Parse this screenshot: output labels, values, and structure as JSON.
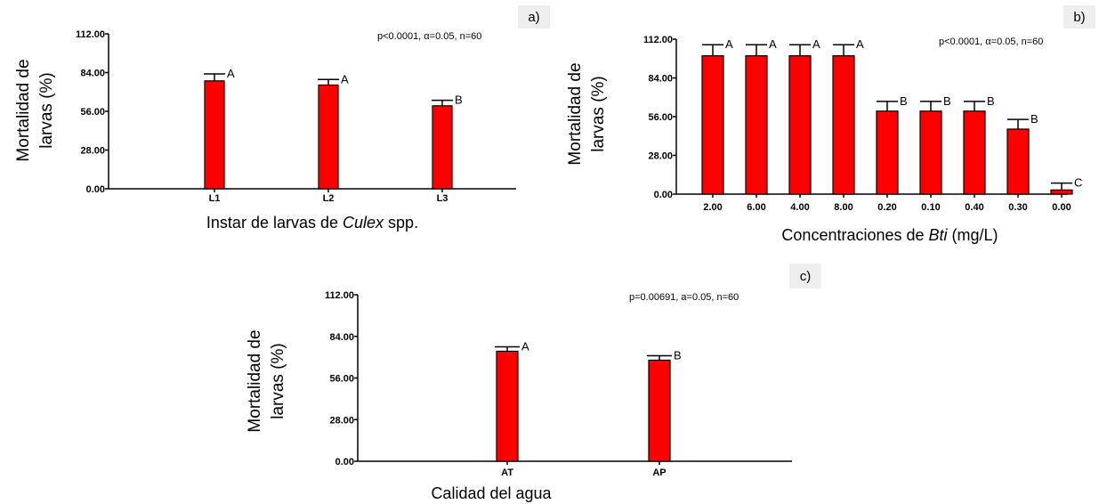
{
  "colors": {
    "bar": "#ff0000",
    "bar_stroke": "#000000",
    "label_box": "#eeeeee"
  },
  "chart_data": [
    {
      "type": "bar",
      "panel_label": "a)",
      "stat_text": "p<0.0001, α=0.05, n=60",
      "ylabel_lines": [
        "Mortalidad de",
        "larvas (%)"
      ],
      "xlabel_prefix": "Instar de larvas de ",
      "xlabel_italic": "Culex",
      "xlabel_suffix": " spp.",
      "yticks": [
        "0.00",
        "28.00",
        "56.00",
        "84.00",
        "112.00"
      ],
      "ylim": [
        0,
        112
      ],
      "categories": [
        "L1",
        "L2",
        "L3"
      ],
      "values": [
        78,
        75,
        60
      ],
      "errors": [
        5,
        4,
        4
      ],
      "letters": [
        "A",
        "A",
        "B"
      ]
    },
    {
      "type": "bar",
      "panel_label": "b)",
      "stat_text": "p<0.0001, α=0.05, n=60",
      "ylabel_lines": [
        "Mortalidad de",
        "larvas (%)"
      ],
      "xlabel_prefix": "Concentraciones de ",
      "xlabel_italic": "Bti",
      "xlabel_suffix": " (mg/L)",
      "yticks": [
        "0.00",
        "28.00",
        "56.00",
        "84.00",
        "112.00"
      ],
      "ylim": [
        0,
        112
      ],
      "categories": [
        "2.00",
        "6.00",
        "4.00",
        "8.00",
        "0.20",
        "0.10",
        "0.40",
        "0.30",
        "0.00"
      ],
      "values": [
        100,
        100,
        100,
        100,
        60,
        60,
        60,
        47,
        3
      ],
      "errors": [
        8,
        8,
        8,
        8,
        7,
        7,
        7,
        7,
        5
      ],
      "letters": [
        "A",
        "A",
        "A",
        "A",
        "B",
        "B",
        "B",
        "B",
        "C"
      ]
    },
    {
      "type": "bar",
      "panel_label": "c)",
      "stat_text": "p=0.00691, a=0.05, n=60",
      "ylabel_lines": [
        "Mortalidad de",
        "larvas (%)"
      ],
      "xlabel_prefix": "Calidad del agua",
      "xlabel_italic": "",
      "xlabel_suffix": "",
      "yticks": [
        "0.00",
        "28.00",
        "56.00",
        "84.00",
        "112.00"
      ],
      "ylim": [
        0,
        112
      ],
      "categories": [
        "AT",
        "AP"
      ],
      "values": [
        74,
        68
      ],
      "errors": [
        3,
        3
      ],
      "letters": [
        "A",
        "B"
      ]
    }
  ]
}
